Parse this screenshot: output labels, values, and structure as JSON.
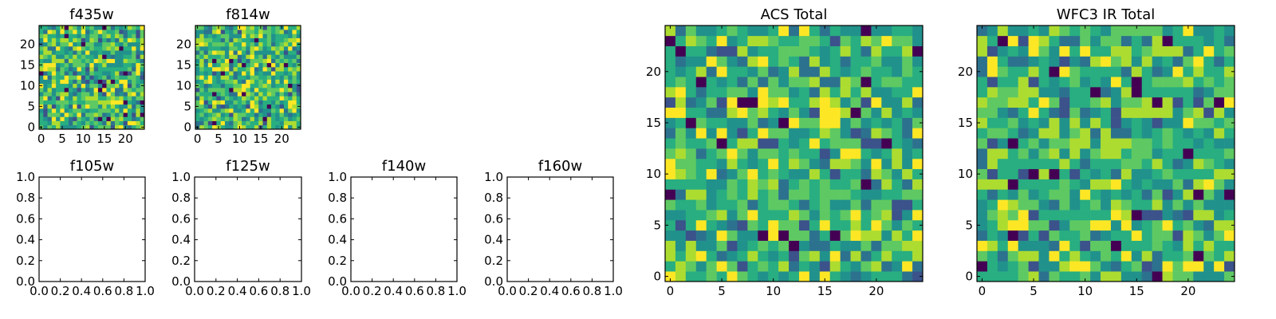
{
  "chart_data": [
    {
      "type": "heatmap",
      "title": "f435w",
      "xlim": [
        -0.5,
        24.5
      ],
      "ylim": [
        -0.5,
        24.5
      ],
      "xticks": [
        "0",
        "5",
        "10",
        "15",
        "20"
      ],
      "yticks": [
        "0",
        "5",
        "10",
        "15",
        "20"
      ],
      "grid_size": [
        25,
        25
      ],
      "colormap": "viridis",
      "grid": false,
      "legend": "none"
    },
    {
      "type": "heatmap",
      "title": "f814w",
      "xlim": [
        -0.5,
        24.5
      ],
      "ylim": [
        -0.5,
        24.5
      ],
      "xticks": [
        "0",
        "5",
        "10",
        "15",
        "20"
      ],
      "yticks": [
        "0",
        "5",
        "10",
        "15",
        "20"
      ],
      "grid_size": [
        25,
        25
      ],
      "colormap": "viridis",
      "grid": false,
      "legend": "none"
    },
    {
      "type": "heatmap",
      "title": "f105w",
      "empty": true,
      "xlim": [
        0,
        1
      ],
      "ylim": [
        0,
        1
      ],
      "xticks": [
        "0.0",
        "0.2",
        "0.4",
        "0.6",
        "0.8",
        "1.0"
      ],
      "yticks": [
        "0.0",
        "0.2",
        "0.4",
        "0.6",
        "0.8",
        "1.0"
      ]
    },
    {
      "type": "heatmap",
      "title": "f125w",
      "empty": true,
      "xlim": [
        0,
        1
      ],
      "ylim": [
        0,
        1
      ],
      "xticks": [
        "0.0",
        "0.2",
        "0.4",
        "0.6",
        "0.8",
        "1.0"
      ],
      "yticks": [
        "0.0",
        "0.2",
        "0.4",
        "0.6",
        "0.8",
        "1.0"
      ]
    },
    {
      "type": "heatmap",
      "title": "f140w",
      "empty": true,
      "xlim": [
        0,
        1
      ],
      "ylim": [
        0,
        1
      ],
      "xticks": [
        "0.0",
        "0.2",
        "0.4",
        "0.6",
        "0.8",
        "1.0"
      ],
      "yticks": [
        "0.0",
        "0.2",
        "0.4",
        "0.6",
        "0.8",
        "1.0"
      ]
    },
    {
      "type": "heatmap",
      "title": "f160w",
      "empty": true,
      "xlim": [
        0,
        1
      ],
      "ylim": [
        0,
        1
      ],
      "xticks": [
        "0.0",
        "0.2",
        "0.4",
        "0.6",
        "0.8",
        "1.0"
      ],
      "yticks": [
        "0.0",
        "0.2",
        "0.4",
        "0.6",
        "0.8",
        "1.0"
      ]
    },
    {
      "type": "heatmap",
      "title": "ACS Total",
      "xlim": [
        -0.5,
        24.5
      ],
      "ylim": [
        -0.5,
        24.5
      ],
      "xticks": [
        "0",
        "5",
        "10",
        "15",
        "20"
      ],
      "yticks": [
        "0",
        "5",
        "10",
        "15",
        "20"
      ],
      "grid_size": [
        25,
        25
      ],
      "colormap": "viridis",
      "grid": false,
      "legend": "none"
    },
    {
      "type": "heatmap",
      "title": "WFC3 IR Total",
      "xlim": [
        -0.5,
        24.5
      ],
      "ylim": [
        -0.5,
        24.5
      ],
      "xticks": [
        "0",
        "5",
        "10",
        "15",
        "20"
      ],
      "yticks": [
        "0",
        "5",
        "10",
        "15",
        "20"
      ],
      "grid_size": [
        25,
        25
      ],
      "colormap": "viridis",
      "grid": false,
      "legend": "none"
    }
  ]
}
